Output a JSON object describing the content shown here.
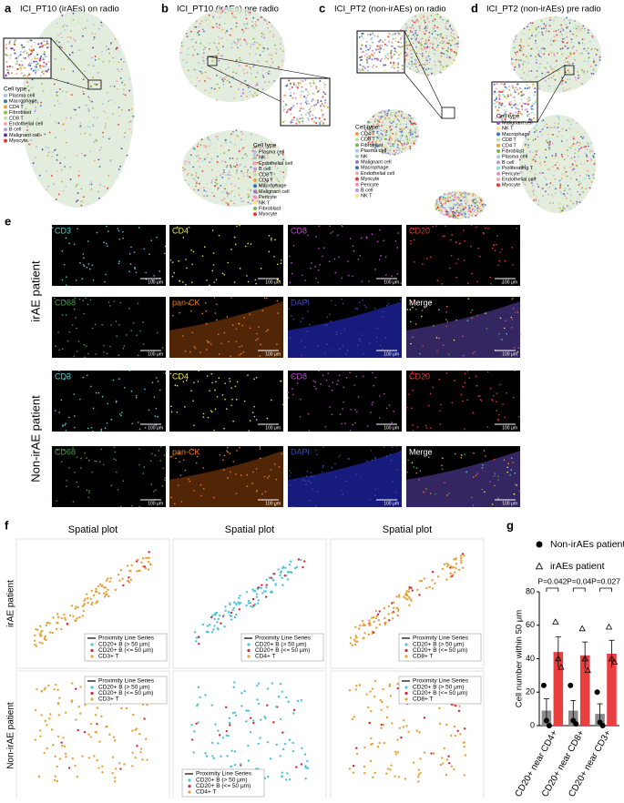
{
  "panels_top": [
    {
      "letter": "a",
      "title": "ICI_PT10 (irAEs) on radio",
      "legend_title": "Cell type",
      "legend": [
        {
          "label": "Plasma cell",
          "color": "#9ecae1"
        },
        {
          "label": "Macrophage",
          "color": "#3b6fb6"
        },
        {
          "label": "CD4 T",
          "color": "#e6a23c"
        },
        {
          "label": "Fibroblast",
          "color": "#8bc34a"
        },
        {
          "label": "CD8 T",
          "color": "#c5e1a5"
        },
        {
          "label": "Endothelial cell",
          "color": "#f4a6a6"
        },
        {
          "label": "B cell",
          "color": "#b39ddb"
        },
        {
          "label": "Malignant cell",
          "color": "#5e35b1"
        },
        {
          "label": "Myocyte",
          "color": "#e53935"
        }
      ]
    },
    {
      "letter": "b",
      "title": "ICI_PT10 (irAEs) pre radio",
      "legend_title": "Cell type",
      "legend": [
        {
          "label": "Plasma cell",
          "color": "#9ecae1"
        },
        {
          "label": "NK",
          "color": "#b0bec5"
        },
        {
          "label": "Endothelial cell",
          "color": "#f4a6a6"
        },
        {
          "label": "B cell",
          "color": "#b39ddb"
        },
        {
          "label": "CD8 T",
          "color": "#c5e1a5"
        },
        {
          "label": "CD4 T",
          "color": "#e6a23c"
        },
        {
          "label": "Macrophage",
          "color": "#3b6fb6"
        },
        {
          "label": "Malignant cell",
          "color": "#9575cd"
        },
        {
          "label": "Pericyte",
          "color": "#f48fb1"
        },
        {
          "label": "NK T",
          "color": "#ffe082"
        },
        {
          "label": "Fibroblast",
          "color": "#7cb342"
        },
        {
          "label": "Myocyte",
          "color": "#e53935"
        }
      ]
    },
    {
      "letter": "c",
      "title": "ICI_PT2 (non-irAEs) on radio",
      "legend_title": "Cell type",
      "legend": [
        {
          "label": "CD4 T",
          "color": "#e6a23c"
        },
        {
          "label": "CD8 T",
          "color": "#c5e1a5"
        },
        {
          "label": "Fibroblast",
          "color": "#7cb342"
        },
        {
          "label": "Plasma cell",
          "color": "#9ecae1"
        },
        {
          "label": "NK",
          "color": "#b0bec5"
        },
        {
          "label": "Malignant cell",
          "color": "#9575cd"
        },
        {
          "label": "Macrophage",
          "color": "#3b6fb6"
        },
        {
          "label": "Endothelial cell",
          "color": "#f4a6a6"
        },
        {
          "label": "Myocyte",
          "color": "#e53935"
        },
        {
          "label": "Pericyte",
          "color": "#f48fb1"
        },
        {
          "label": "B cell",
          "color": "#b39ddb"
        },
        {
          "label": "NK T",
          "color": "#ffe082"
        }
      ]
    },
    {
      "letter": "d",
      "title": "ICI_PT2 (non-irAEs) pre radio",
      "legend_title": "Cell type",
      "legend": [
        {
          "label": "Malignant cell",
          "color": "#7e57c2"
        },
        {
          "label": "NK T",
          "color": "#ffe082"
        },
        {
          "label": "Macrophage",
          "color": "#3b6fb6"
        },
        {
          "label": "CD8 T",
          "color": "#c5e1a5"
        },
        {
          "label": "CD4 T",
          "color": "#e6a23c"
        },
        {
          "label": "Fibroblast",
          "color": "#7cb342"
        },
        {
          "label": "Plasma cell",
          "color": "#9ecae1"
        },
        {
          "label": "B cell",
          "color": "#b39ddb"
        },
        {
          "label": "Proliferating T",
          "color": "#80deea"
        },
        {
          "label": "Pericyte",
          "color": "#f48fb1"
        },
        {
          "label": "Endothelial cell",
          "color": "#f4a6a6"
        },
        {
          "label": "Myocyte",
          "color": "#e53935"
        }
      ]
    }
  ],
  "panel_e": {
    "letter": "e",
    "rows": [
      "irAE patient",
      "Non-irAE patient"
    ],
    "scale_bar": "100 μm",
    "channels": [
      {
        "label": "CD3",
        "color": "#4dd0e1"
      },
      {
        "label": "CD4",
        "color": "#e8e84a"
      },
      {
        "label": "CD8",
        "color": "#c04cc8"
      },
      {
        "label": "CD20",
        "color": "#e53935"
      },
      {
        "label": "CD68",
        "color": "#43a047"
      },
      {
        "label": "pan-CK",
        "color": "#ef7d22"
      },
      {
        "label": "DAPI",
        "color": "#3949ab"
      },
      {
        "label": "Merge",
        "color": "#ffffff"
      }
    ]
  },
  "panel_f": {
    "letter": "f",
    "title": "Spatial plot",
    "rows": [
      "irAE patient",
      "Non-irAE patient"
    ],
    "legend_line": "Proximity Line Series",
    "legend_far": "CD20+ B (> 50 μm)",
    "legend_near": "CD20+ B (<= 50 μm)",
    "columns": [
      "CD3+ T",
      "CD4+ T",
      "CD8+ T"
    ],
    "colors": {
      "far": "#4fc3d9",
      "near": "#d62739",
      "t": "#e6a23c"
    }
  },
  "chart_data": {
    "type": "bar",
    "letter": "g",
    "ylabel": "Cell number within 50 μm",
    "categories": [
      "CD20+ near CD4+",
      "CD20+ near CD8+",
      "CD20+ near CD3+"
    ],
    "ylim": [
      0,
      80
    ],
    "yticks": [
      0,
      20,
      40,
      60,
      80
    ],
    "series": [
      {
        "name": "Non-irAEs patient",
        "color": "#8a8a8a",
        "marker": "circle",
        "values": [
          9,
          9,
          7
        ],
        "errors": [
          7,
          6,
          6
        ],
        "points": [
          [
            24,
            3,
            0
          ],
          [
            24,
            3,
            1
          ],
          [
            20,
            2,
            0
          ]
        ]
      },
      {
        "name": "irAEs patient",
        "color": "#e8403f",
        "marker": "triangle",
        "values": [
          44,
          42,
          43
        ],
        "errors": [
          9,
          8,
          8
        ],
        "points": [
          [
            62,
            40,
            35
          ],
          [
            58,
            40,
            33
          ],
          [
            59,
            40,
            38
          ]
        ]
      }
    ],
    "annotations": [
      "P=0.042",
      "P=0.04",
      "P=0.027"
    ]
  }
}
